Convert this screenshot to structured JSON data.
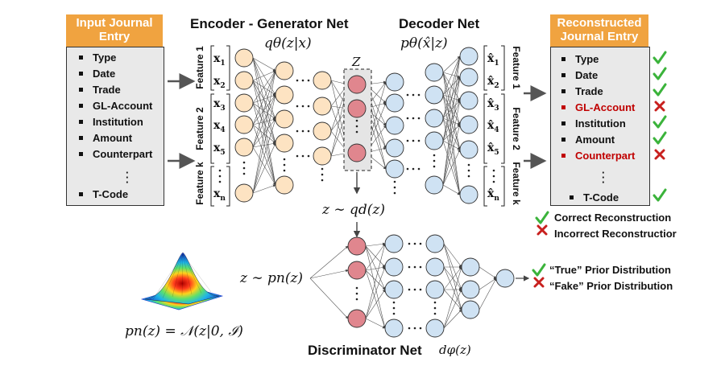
{
  "input_box": {
    "title": "Input Journal Entry",
    "items": [
      "Type",
      "Date",
      "Trade",
      "GL-Account",
      "Institution",
      "Amount",
      "Counterpart",
      "T-Code"
    ]
  },
  "output_box": {
    "title": "Reconstructed Journal Entry",
    "items": [
      {
        "label": "Type",
        "status": "correct"
      },
      {
        "label": "Date",
        "status": "correct"
      },
      {
        "label": "Trade",
        "status": "correct"
      },
      {
        "label": "GL-Account",
        "status": "incorrect"
      },
      {
        "label": "Institution",
        "status": "correct"
      },
      {
        "label": "Amount",
        "status": "correct"
      },
      {
        "label": "Counterpart",
        "status": "incorrect"
      },
      {
        "label": "T-Code",
        "status": "correct"
      }
    ]
  },
  "encoder": {
    "title": "Encoder - Generator Net",
    "dist_label": "qθ(z|x)"
  },
  "decoder": {
    "title": "Decoder Net",
    "dist_label": "pθ(x̂|z)"
  },
  "latent": {
    "label": "Z",
    "sample_label": "z ∼ qd(z)"
  },
  "features_in": [
    "Feature 1",
    "Feature 2",
    "Feature k"
  ],
  "features_out": [
    "Feature 1",
    "Feature 2",
    "Feature k"
  ],
  "inputs": [
    "x1",
    "x2",
    "x3",
    "x4",
    "x5",
    "xn"
  ],
  "outputs": [
    "x̂1",
    "x̂2",
    "x̂3",
    "x̂4",
    "x̂5",
    "x̂n"
  ],
  "legend_recon": {
    "correct": "Correct Reconstruction",
    "incorrect": "Incorrect Reconstructior"
  },
  "legend_prior": {
    "true": "“True” Prior Distribution",
    "fake": "“Fake” Prior Distribution"
  },
  "prior": {
    "sample_label": "z ∼ pn(z)",
    "formula": "pn(z) = 𝒩(z|0, ℐ)"
  },
  "discriminator": {
    "title": "Discriminator Net",
    "func_label": "dφ(z)"
  },
  "colors": {
    "orange_header": "#f0a340",
    "input_node": "#fde3c2",
    "latent_node": "#e0868e",
    "decoder_node": "#cfe2f3",
    "check": "#3bb33b",
    "cross": "#c8201e",
    "error_text": "#c00000"
  }
}
